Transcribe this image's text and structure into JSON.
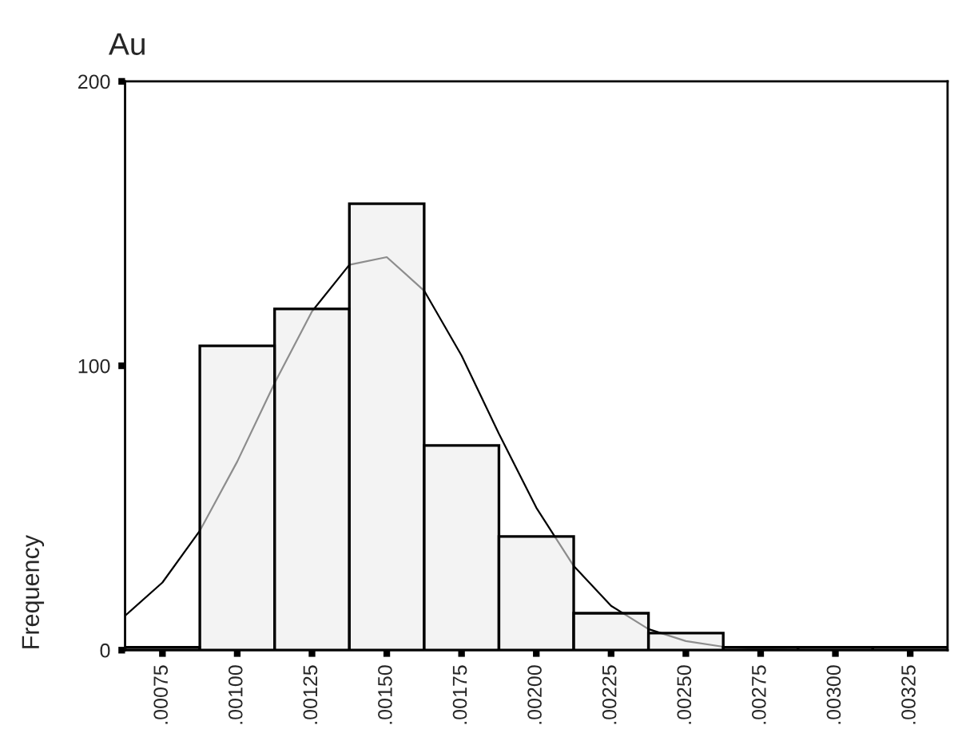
{
  "chart_data": {
    "type": "histogram",
    "title": "Au",
    "ylabel": "Frequency",
    "bins": [
      0.000625,
      0.000875,
      0.001125,
      0.001375,
      0.001625,
      0.001875,
      0.002125,
      0.002375,
      0.002625,
      0.002875,
      0.003125,
      0.003375
    ],
    "values": [
      1,
      107,
      120,
      157,
      72,
      40,
      13,
      6,
      1,
      1,
      1
    ],
    "color": "#ebebeb",
    "series": [
      {
        "type": "line",
        "color": "#000000",
        "x": [
          0.000625,
          0.00075,
          0.000875,
          0.001,
          0.001125,
          0.00125,
          0.001375,
          0.0015,
          0.001625,
          0.00175,
          0.001875,
          0.002,
          0.002125,
          0.00225,
          0.002375,
          0.0025,
          0.002625,
          0.00275,
          0.002875,
          0.003,
          0.003125,
          0.00325,
          0.003375
        ],
        "values": [
          12.1,
          23.8,
          42.0,
          66.3,
          93.9,
          119.1,
          135.5,
          138.2,
          126.4,
          103.6,
          76.1,
          50.1,
          29.6,
          15.6,
          7.4,
          3.2,
          1.2,
          0.4,
          0.1,
          0,
          0,
          0,
          0
        ]
      }
    ],
    "xlim": [
      0.000625,
      0.003375
    ],
    "xticks": [
      {
        "value": 0.00075,
        "label": ".00075"
      },
      {
        "value": 0.001,
        "label": ".00100"
      },
      {
        "value": 0.00125,
        "label": ".00125"
      },
      {
        "value": 0.0015,
        "label": ".00150"
      },
      {
        "value": 0.00175,
        "label": ".00175"
      },
      {
        "value": 0.002,
        "label": ".00200"
      },
      {
        "value": 0.00225,
        "label": ".00225"
      },
      {
        "value": 0.0025,
        "label": ".00250"
      },
      {
        "value": 0.00275,
        "label": ".00275"
      },
      {
        "value": 0.003,
        "label": ".00300"
      },
      {
        "value": 0.00325,
        "label": ".00325"
      }
    ],
    "ylim": [
      0,
      200
    ],
    "yticks": [
      0,
      100,
      200
    ],
    "grid": false
  }
}
